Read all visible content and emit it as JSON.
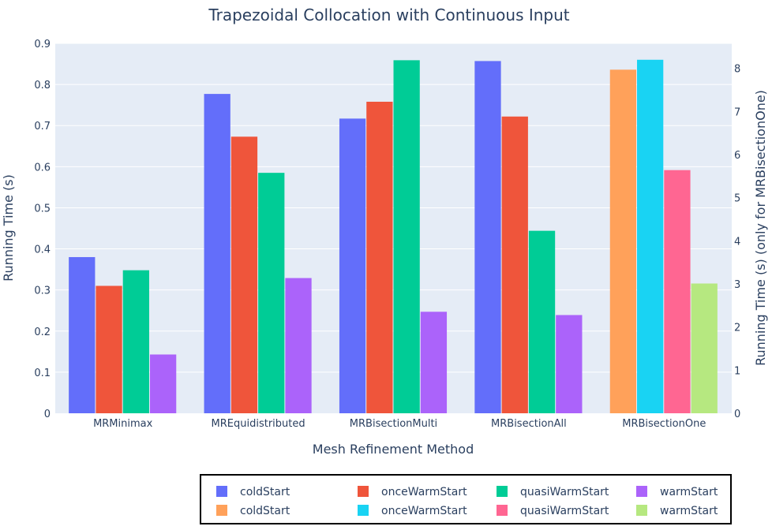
{
  "chart_data": {
    "type": "bar",
    "title": "Trapezoidal Collocation with Continuous Input",
    "xlabel": "Mesh Refinement Method",
    "ylabel": "Running Time (s)",
    "y2label": "Running Time (s) (only for MRBisectionOne)",
    "categories": [
      "MRMinimax",
      "MREquidistributed",
      "MRBisectionMulti",
      "MRBisectionAll",
      "MRBisectionOne"
    ],
    "ylim": [
      0,
      0.9
    ],
    "yticks": [
      0,
      0.1,
      0.2,
      0.3,
      0.4,
      0.5,
      0.6,
      0.7,
      0.8,
      0.9
    ],
    "ytick_labels": [
      "0",
      "0.1",
      "0.2",
      "0.3",
      "0.4",
      "0.5",
      "0.6",
      "0.7",
      "0.8",
      "0.9"
    ],
    "y2lim": [
      0,
      8.58
    ],
    "y2ticks": [
      0,
      1,
      2,
      3,
      4,
      5,
      6,
      7,
      8
    ],
    "y2tick_labels": [
      "0",
      "1",
      "2",
      "3",
      "4",
      "5",
      "6",
      "7",
      "8"
    ],
    "grid": true,
    "background": "#e5ecf6",
    "legend_position": "bottom",
    "series": [
      {
        "name": "coldStart",
        "axis": "y",
        "color": "#636efa",
        "values": [
          0.38,
          0.777,
          0.717,
          0.857,
          null
        ]
      },
      {
        "name": "onceWarmStart",
        "axis": "y",
        "color": "#ef553b",
        "values": [
          0.31,
          0.673,
          0.758,
          0.722,
          null
        ]
      },
      {
        "name": "quasiWarmStart",
        "axis": "y",
        "color": "#00cc96",
        "values": [
          0.348,
          0.585,
          0.859,
          0.444,
          null
        ]
      },
      {
        "name": "warmStart",
        "axis": "y",
        "color": "#ab63fa",
        "values": [
          0.143,
          0.329,
          0.247,
          0.239,
          null
        ]
      },
      {
        "name": "coldStart",
        "axis": "y2",
        "color": "#ffa15a",
        "values": [
          null,
          null,
          null,
          null,
          7.97
        ]
      },
      {
        "name": "onceWarmStart",
        "axis": "y2",
        "color": "#19d3f3",
        "values": [
          null,
          null,
          null,
          null,
          8.2
        ]
      },
      {
        "name": "quasiWarmStart",
        "axis": "y2",
        "color": "#ff6692",
        "values": [
          null,
          null,
          null,
          null,
          5.64
        ]
      },
      {
        "name": "warmStart",
        "axis": "y2",
        "color": "#b6e880",
        "values": [
          null,
          null,
          null,
          null,
          3.01
        ]
      }
    ]
  }
}
